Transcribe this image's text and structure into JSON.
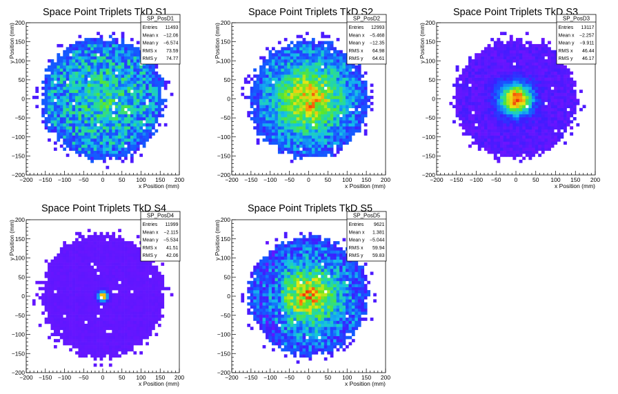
{
  "chart_data": [
    {
      "type": "heatmap",
      "title": "Space Point Triplets TkD S1",
      "xlabel": "x Position (mm)",
      "ylabel": "y Position (mm)",
      "xlim": [
        -200,
        200
      ],
      "ylim": [
        -200,
        200
      ],
      "x_ticks": [
        -200,
        -150,
        -100,
        -50,
        0,
        50,
        100,
        150,
        200
      ],
      "y_ticks": [
        -200,
        -150,
        -100,
        -50,
        0,
        50,
        100,
        150,
        200
      ],
      "disk_radius": 160,
      "distribution": "broad",
      "stats": {
        "name": "SP_PosD1",
        "rows": [
          [
            "Entries",
            "11493"
          ],
          [
            "Mean x",
            "-12.06"
          ],
          [
            "Mean y",
            "-6.574"
          ],
          [
            "RMS x",
            "73.59"
          ],
          [
            "RMS y",
            "74.77"
          ]
        ]
      }
    },
    {
      "type": "heatmap",
      "title": "Space Point Triplets TkD S2",
      "xlabel": "x Position (mm)",
      "ylabel": "y Position (mm)",
      "xlim": [
        -200,
        200
      ],
      "ylim": [
        -200,
        200
      ],
      "x_ticks": [
        -200,
        -150,
        -100,
        -50,
        0,
        50,
        100,
        150,
        200
      ],
      "y_ticks": [
        -200,
        -150,
        -100,
        -50,
        0,
        50,
        100,
        150,
        200
      ],
      "disk_radius": 155,
      "distribution": "medium",
      "stats": {
        "name": "SP_PosD2",
        "rows": [
          [
            "Entries",
            "12993"
          ],
          [
            "Mean x",
            "-5.468"
          ],
          [
            "Mean y",
            "-12.35"
          ],
          [
            "RMS x",
            "64.98"
          ],
          [
            "RMS y",
            "64.61"
          ]
        ]
      }
    },
    {
      "type": "heatmap",
      "title": "Space Point Triplets TkD S3",
      "xlabel": "x Position (mm)",
      "ylabel": "y Position (mm)",
      "xlim": [
        -200,
        200
      ],
      "ylim": [
        -200,
        200
      ],
      "x_ticks": [
        -200,
        -150,
        -100,
        -50,
        0,
        50,
        100,
        150,
        200
      ],
      "y_ticks": [
        -200,
        -150,
        -100,
        -50,
        0,
        50,
        100,
        150,
        200
      ],
      "disk_radius": 155,
      "distribution": "peaked",
      "stats": {
        "name": "SP_PosD3",
        "rows": [
          [
            "Entries",
            "13117"
          ],
          [
            "Mean x",
            "-2.257"
          ],
          [
            "Mean y",
            "-9.911"
          ],
          [
            "RMS x",
            "46.44"
          ],
          [
            "RMS y",
            "46.17"
          ]
        ]
      }
    },
    {
      "type": "heatmap",
      "title": "Space Point Triplets TkD S4",
      "xlabel": "x Position (mm)",
      "ylabel": "y Position (mm)",
      "xlim": [
        -200,
        200
      ],
      "ylim": [
        -200,
        200
      ],
      "x_ticks": [
        -200,
        -150,
        -100,
        -50,
        0,
        50,
        100,
        150,
        200
      ],
      "y_ticks": [
        -200,
        -150,
        -100,
        -50,
        0,
        50,
        100,
        150,
        200
      ],
      "disk_radius": 160,
      "distribution": "spike",
      "stats": {
        "name": "SP_PosD4",
        "rows": [
          [
            "Entries",
            "11999"
          ],
          [
            "Mean x",
            "-2.115"
          ],
          [
            "Mean y",
            "-5.534"
          ],
          [
            "RMS x",
            "41.51"
          ],
          [
            "RMS y",
            "42.06"
          ]
        ]
      }
    },
    {
      "type": "heatmap",
      "title": "Space Point Triplets TkD S5",
      "xlabel": "x Position (mm)",
      "ylabel": "y Position (mm)",
      "xlim": [
        -200,
        200
      ],
      "ylim": [
        -200,
        200
      ],
      "x_ticks": [
        -200,
        -150,
        -100,
        -50,
        0,
        50,
        100,
        150,
        200
      ],
      "y_ticks": [
        -200,
        -150,
        -100,
        -50,
        0,
        50,
        100,
        150,
        200
      ],
      "disk_radius": 155,
      "distribution": "medium-striped",
      "stats": {
        "name": "SP_PosD5",
        "rows": [
          [
            "Entries",
            "9621"
          ],
          [
            "Mean x",
            "1.381"
          ],
          [
            "Mean y",
            "-5.044"
          ],
          [
            "RMS x",
            "59.94"
          ],
          [
            "RMS y",
            "59.83"
          ]
        ]
      }
    }
  ]
}
